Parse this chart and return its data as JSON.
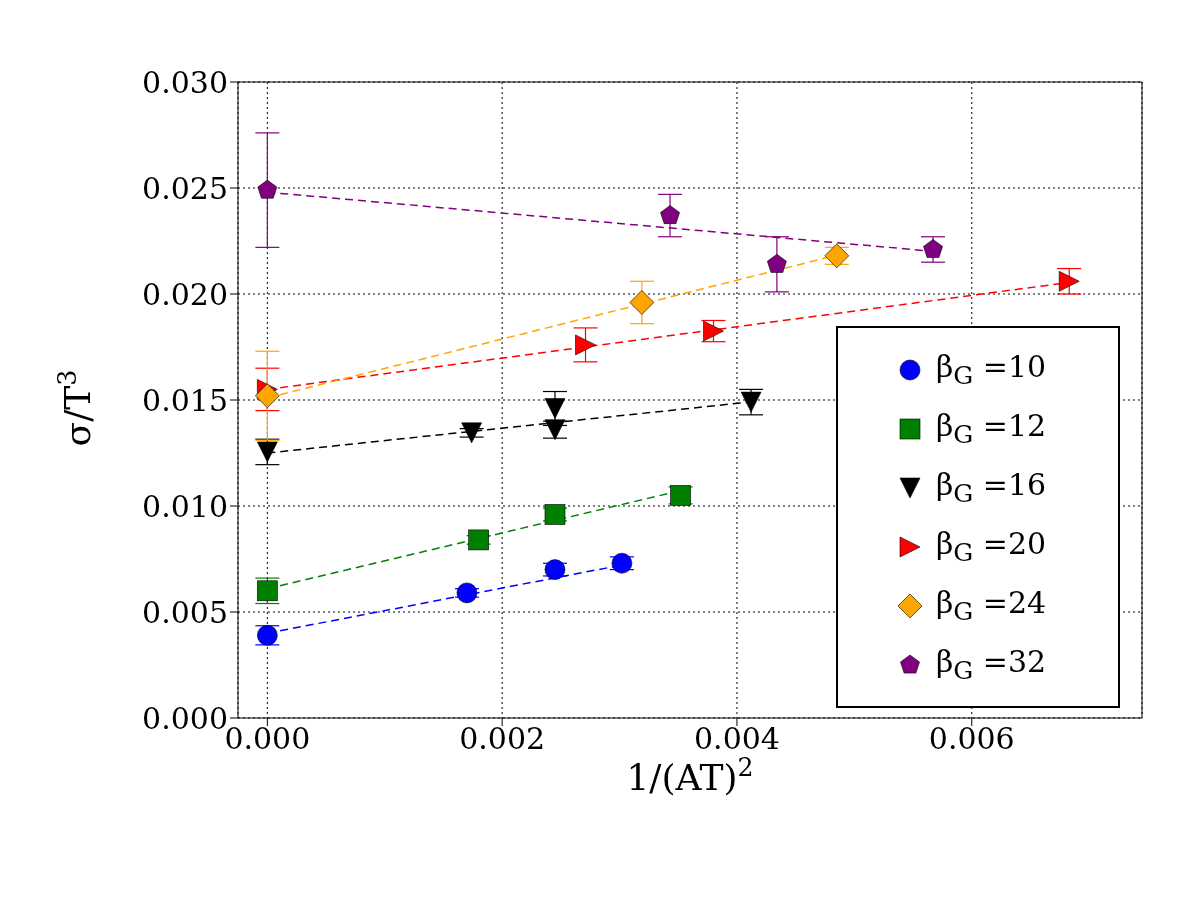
{
  "chart_data": {
    "type": "scatter",
    "xlabel": "1/(AT)$^{2}$",
    "ylabel": "σ/T$^{3}$",
    "xlim": [
      -0.00025,
      0.00745
    ],
    "ylim": [
      0,
      0.03
    ],
    "xticks": [
      {
        "value": 0,
        "label": "0.000"
      },
      {
        "value": 0.002,
        "label": "0.002"
      },
      {
        "value": 0.004,
        "label": "0.004"
      },
      {
        "value": 0.006,
        "label": "0.006"
      }
    ],
    "yticks": [
      {
        "value": 0,
        "label": "0.000"
      },
      {
        "value": 0.005,
        "label": "0.005"
      },
      {
        "value": 0.01,
        "label": "0.010"
      },
      {
        "value": 0.015,
        "label": "0.015"
      },
      {
        "value": 0.02,
        "label": "0.020"
      },
      {
        "value": 0.025,
        "label": "0.025"
      },
      {
        "value": 0.03,
        "label": "0.030"
      }
    ],
    "grid": true,
    "legend": "right",
    "line_style": "dashed",
    "series": [
      {
        "name": "β$_{G}$ =10",
        "color": "#0000ff",
        "marker": "circle",
        "x": [
          0,
          0.0017,
          0.00245,
          0.00302
        ],
        "values": [
          0.0039,
          0.0059,
          0.007,
          0.0073
        ],
        "errors": [
          0.00045,
          0.0002,
          0.0003,
          0.0003
        ]
      },
      {
        "name": "β$_{G}$ =12",
        "color": "#008000",
        "marker": "square",
        "x": [
          0,
          0.0018,
          0.00245,
          0.00352
        ],
        "values": [
          0.006,
          0.0084,
          0.0096,
          0.0105
        ],
        "errors": [
          0.0006,
          0.0002,
          0.0003,
          0.0004
        ]
      },
      {
        "name": "β$_{G}$ =16",
        "color": "#000000",
        "marker": "triangle-down",
        "x": [
          0,
          0.00174,
          0.00245,
          0.00245,
          0.00412
        ],
        "values": [
          0.01255,
          0.01345,
          0.0136,
          0.0146,
          0.0149
        ],
        "errors": [
          0.0006,
          0.0002,
          0.0004,
          0.0008,
          0.0006
        ]
      },
      {
        "name": "β$_{G}$ =20",
        "color": "#ff0000",
        "marker": "triangle-right",
        "x": [
          0,
          0.00271,
          0.0038,
          0.00683
        ],
        "values": [
          0.0155,
          0.0176,
          0.01825,
          0.0206
        ],
        "errors": [
          0.001,
          0.0008,
          0.0005,
          0.0006
        ]
      },
      {
        "name": "β$_{G}$ =24",
        "color": "#ffa500",
        "marker": "diamond",
        "x": [
          0,
          0.00319,
          0.00485
        ],
        "values": [
          0.0152,
          0.0196,
          0.0218
        ],
        "errors": [
          0.0021,
          0.001,
          0.0004
        ]
      },
      {
        "name": "β$_{G}$ =32",
        "color": "#800080",
        "x": [
          0,
          0.00343,
          0.00434,
          0.00567
        ],
        "values": [
          0.0249,
          0.0237,
          0.0214,
          0.0221
        ],
        "errors": [
          0.0027,
          0.001,
          0.0013,
          0.0006
        ]
      },
      {
        "type": "line",
        "color": "#0000ff",
        "x": [
          0,
          0.0031
        ],
        "values": [
          0.004,
          0.0073
        ]
      },
      {
        "type": "line",
        "color": "#008000",
        "x": [
          0,
          0.0035
        ],
        "values": [
          0.0061,
          0.0107
        ]
      },
      {
        "type": "line",
        "color": "#000000",
        "x": [
          0,
          0.0041
        ],
        "values": [
          0.0125,
          0.0149
        ]
      },
      {
        "type": "line",
        "color": "#ff0000",
        "x": [
          0,
          0.0069
        ],
        "values": [
          0.0155,
          0.0206
        ]
      },
      {
        "type": "line",
        "color": "#ffa500",
        "x": [
          0,
          0.0049
        ],
        "values": [
          0.0151,
          0.0219
        ]
      },
      {
        "type": "line",
        "color": "#800080",
        "x": [
          0,
          0.0057
        ],
        "values": [
          0.0248,
          0.022
        ]
      }
    ]
  }
}
